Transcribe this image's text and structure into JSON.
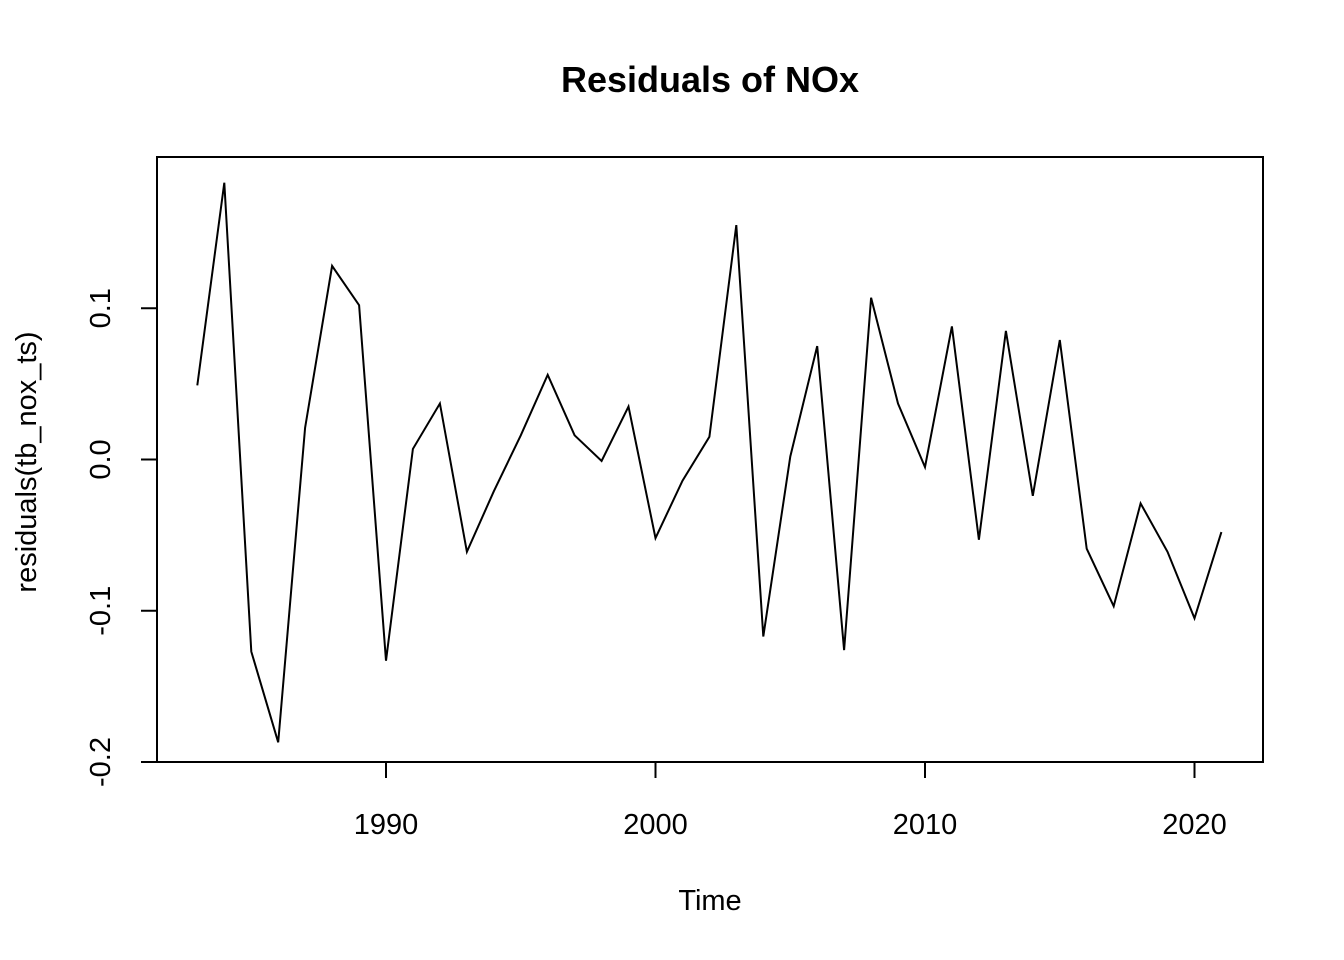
{
  "chart_data": {
    "type": "line",
    "title": "Residuals of NOx",
    "xlabel": "Time",
    "ylabel": "residuals(tb_nox_ts)",
    "x_ticks": [
      1990,
      2000,
      2010,
      2020
    ],
    "y_ticks": [
      -0.2,
      -0.1,
      0.0,
      0.1
    ],
    "y_tick_labels": [
      "-0.2",
      "-0.1",
      "0.0",
      "0.1"
    ],
    "xlim": [
      1981.5,
      2022.5
    ],
    "ylim": [
      -0.2,
      0.2
    ],
    "grid": false,
    "line_color": "#000000",
    "series": [
      {
        "x": [
          1983,
          1984,
          1985,
          1986,
          1987,
          1988,
          1989,
          1990,
          1991,
          1992,
          1993,
          1994,
          1995,
          1996,
          1997,
          1998,
          1999,
          2000,
          2001,
          2002,
          2003,
          2004,
          2005,
          2006,
          2007,
          2008,
          2009,
          2010,
          2011,
          2012,
          2013,
          2014,
          2015,
          2016,
          2017,
          2018,
          2019,
          2020,
          2021
        ],
        "values": [
          0.049,
          0.183,
          -0.127,
          -0.187,
          0.021,
          0.128,
          0.102,
          -0.133,
          0.007,
          0.037,
          -0.061,
          -0.021,
          0.016,
          0.056,
          0.016,
          -0.001,
          0.035,
          -0.052,
          -0.014,
          0.015,
          0.155,
          -0.117,
          0.002,
          0.075,
          -0.126,
          0.107,
          0.037,
          -0.005,
          0.088,
          -0.053,
          0.085,
          -0.024,
          0.079,
          -0.059,
          -0.097,
          -0.029,
          -0.061,
          -0.105,
          -0.048
        ]
      }
    ]
  }
}
